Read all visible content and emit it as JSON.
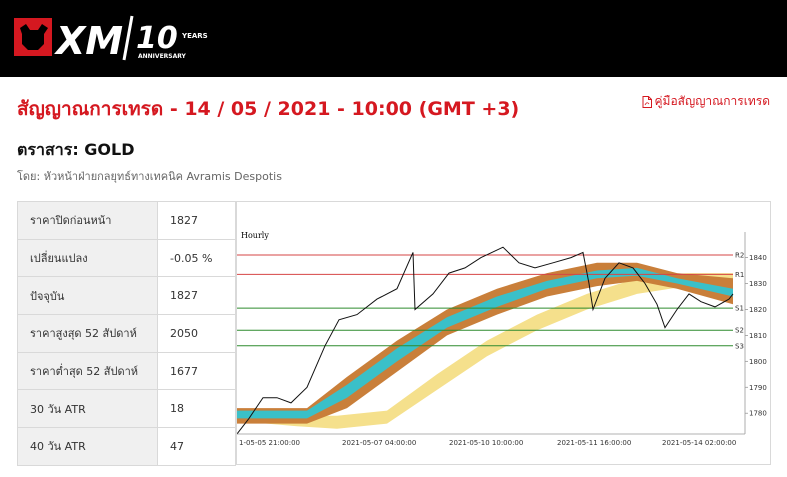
{
  "brand": {
    "logo_text": "XM",
    "anniv_number": "10",
    "anniv_years": "YEARS",
    "anniv_word": "ANNIVERSARY"
  },
  "signal": {
    "title": "สัญญาณการเทรด - 14 / 05 / 2021 - 10:00 (GMT +3)",
    "guide_link": "คู่มือสัญญาณการเทรด",
    "instrument": "ตราสาร: GOLD",
    "author": "โดย: หัวหน้าฝ่ายกลยุทธ์ทางเทคนิค Avramis Despotis"
  },
  "stats": [
    {
      "label": "ราคาปิดก่อนหน้า",
      "value": "1827"
    },
    {
      "label": "เปลี่ยนแปลง",
      "value": "-0.05 %"
    },
    {
      "label": "ปัจจุบัน",
      "value": "1827"
    },
    {
      "label": "ราคาสูงสุด 52 สัปดาห์",
      "value": "2050"
    },
    {
      "label": "ราคาต่ำสุด 52 สัปดาห์",
      "value": "1677"
    },
    {
      "label": "30 วัน ATR",
      "value": "18"
    },
    {
      "label": "40 วัน ATR",
      "value": "47"
    }
  ],
  "chart_data": {
    "type": "line",
    "timeframe_label": "Hourly",
    "xlabels": [
      "1-05-05 21:00:00",
      "2021-05-07 04:00:00",
      "2021-05-10 10:00:00",
      "2021-05-11 16:00:00",
      "2021-05-14 02:00:00"
    ],
    "yticks": [
      1840,
      1830,
      1820,
      1810,
      1800,
      1790,
      1780
    ],
    "ylim": [
      1772,
      1846
    ],
    "levels": [
      {
        "name": "R2",
        "value": 1841,
        "color": "#d64545"
      },
      {
        "name": "R1",
        "value": 1833.5,
        "color": "#d64545"
      },
      {
        "name": "S1",
        "value": 1820.5,
        "color": "#2e8b2e"
      },
      {
        "name": "S2",
        "value": 1812,
        "color": "#2e8b2e"
      },
      {
        "name": "S3",
        "value": 1806,
        "color": "#2e8b2e"
      }
    ],
    "price_path": [
      [
        0,
        1772
      ],
      [
        12,
        1778
      ],
      [
        26,
        1786
      ],
      [
        40,
        1786
      ],
      [
        54,
        1784
      ],
      [
        70,
        1790
      ],
      [
        88,
        1806
      ],
      [
        102,
        1816
      ],
      [
        120,
        1818
      ],
      [
        140,
        1824
      ],
      [
        160,
        1828
      ],
      [
        176,
        1842
      ],
      [
        178,
        1820
      ],
      [
        196,
        1826
      ],
      [
        212,
        1834
      ],
      [
        228,
        1836
      ],
      [
        244,
        1840
      ],
      [
        266,
        1844
      ],
      [
        282,
        1838
      ],
      [
        298,
        1836
      ],
      [
        316,
        1838
      ],
      [
        334,
        1840
      ],
      [
        346,
        1842
      ],
      [
        352,
        1830
      ],
      [
        356,
        1820
      ],
      [
        368,
        1832
      ],
      [
        382,
        1838
      ],
      [
        396,
        1836
      ],
      [
        408,
        1830
      ],
      [
        420,
        1822
      ],
      [
        428,
        1813
      ],
      [
        440,
        1820
      ],
      [
        452,
        1826
      ],
      [
        464,
        1823
      ],
      [
        478,
        1821
      ],
      [
        492,
        1824
      ],
      [
        496,
        1826
      ]
    ],
    "bands": [
      {
        "name": "outer",
        "color": "#c97f3a",
        "upper": [
          [
            0,
            1782
          ],
          [
            70,
            1782
          ],
          [
            110,
            1794
          ],
          [
            160,
            1808
          ],
          [
            210,
            1820
          ],
          [
            260,
            1828
          ],
          [
            310,
            1834
          ],
          [
            360,
            1838
          ],
          [
            400,
            1838
          ],
          [
            440,
            1834
          ],
          [
            496,
            1832
          ]
        ],
        "lower": [
          [
            0,
            1776
          ],
          [
            70,
            1776
          ],
          [
            110,
            1782
          ],
          [
            160,
            1796
          ],
          [
            210,
            1810
          ],
          [
            260,
            1818
          ],
          [
            310,
            1825
          ],
          [
            360,
            1829
          ],
          [
            400,
            1831
          ],
          [
            440,
            1828
          ],
          [
            496,
            1822
          ]
        ]
      },
      {
        "name": "inner",
        "color": "#3ac0c8",
        "upper": [
          [
            0,
            1781
          ],
          [
            70,
            1781
          ],
          [
            110,
            1791
          ],
          [
            160,
            1805
          ],
          [
            210,
            1817
          ],
          [
            260,
            1825
          ],
          [
            310,
            1831
          ],
          [
            360,
            1835
          ],
          [
            400,
            1836
          ],
          [
            440,
            1832
          ],
          [
            496,
            1828
          ]
        ],
        "lower": [
          [
            0,
            1778
          ],
          [
            70,
            1778
          ],
          [
            110,
            1786
          ],
          [
            160,
            1800
          ],
          [
            210,
            1813
          ],
          [
            260,
            1821
          ],
          [
            310,
            1828
          ],
          [
            360,
            1832
          ],
          [
            400,
            1833
          ],
          [
            440,
            1830
          ],
          [
            496,
            1825
          ]
        ]
      },
      {
        "name": "slow",
        "color": "#f5e08c",
        "upper": [
          [
            0,
            1781
          ],
          [
            60,
            1779
          ],
          [
            100,
            1779
          ],
          [
            150,
            1781
          ],
          [
            200,
            1795
          ],
          [
            250,
            1808
          ],
          [
            300,
            1818
          ],
          [
            350,
            1826
          ],
          [
            400,
            1832
          ],
          [
            450,
            1834
          ],
          [
            496,
            1834
          ]
        ],
        "lower": [
          [
            0,
            1777
          ],
          [
            60,
            1775
          ],
          [
            100,
            1774
          ],
          [
            150,
            1776
          ],
          [
            200,
            1789
          ],
          [
            250,
            1802
          ],
          [
            300,
            1812
          ],
          [
            350,
            1820
          ],
          [
            400,
            1826
          ],
          [
            450,
            1829
          ],
          [
            496,
            1830
          ]
        ]
      }
    ]
  },
  "colors": {
    "brand_red": "#d51820",
    "topbar": "#000000"
  }
}
